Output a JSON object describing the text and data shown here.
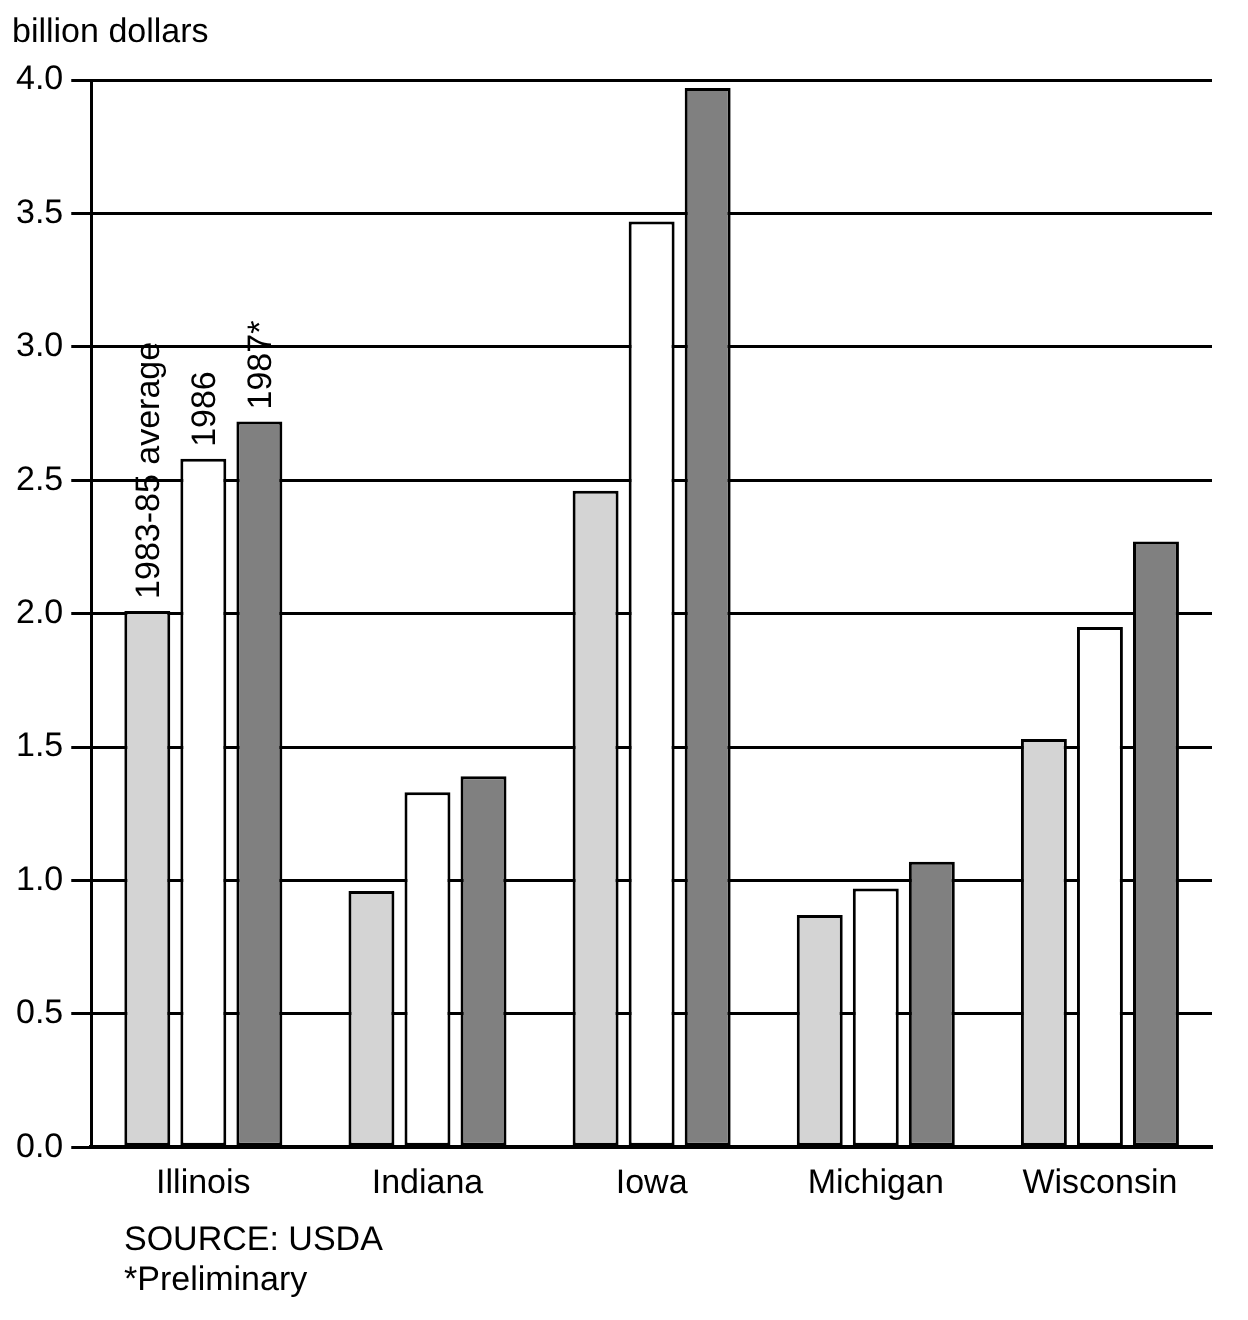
{
  "chart_data": {
    "type": "bar",
    "ylabel": "billion dollars",
    "categories": [
      "Illinois",
      "Indiana",
      "Iowa",
      "Michigan",
      "Wisconsin"
    ],
    "series": [
      {
        "name": "1983-85 average",
        "color": "#d4d4d4",
        "values": [
          2.01,
          0.96,
          2.46,
          0.87,
          1.53
        ]
      },
      {
        "name": "1986",
        "color": "#ffffff",
        "values": [
          2.58,
          1.33,
          3.47,
          0.97,
          1.95
        ]
      },
      {
        "name": "1987*",
        "color": "#808080",
        "values": [
          2.72,
          1.39,
          3.97,
          1.07,
          2.27
        ]
      }
    ],
    "ylim": [
      0,
      4
    ],
    "yticks": [
      {
        "value": 0,
        "label": "0.0"
      },
      {
        "value": 0.5,
        "label": "0.5"
      },
      {
        "value": 1,
        "label": "1.0"
      },
      {
        "value": 1.5,
        "label": "1.5"
      },
      {
        "value": 2,
        "label": "2.0"
      },
      {
        "value": 2.5,
        "label": "2.5"
      },
      {
        "value": 3,
        "label": "3.0"
      },
      {
        "value": 3.5,
        "label": "3.5"
      },
      {
        "value": 4,
        "label": "4.0"
      }
    ],
    "grid": "y",
    "legend": false,
    "annotations": [
      "SOURCE: USDA",
      "*Preliminary"
    ]
  }
}
